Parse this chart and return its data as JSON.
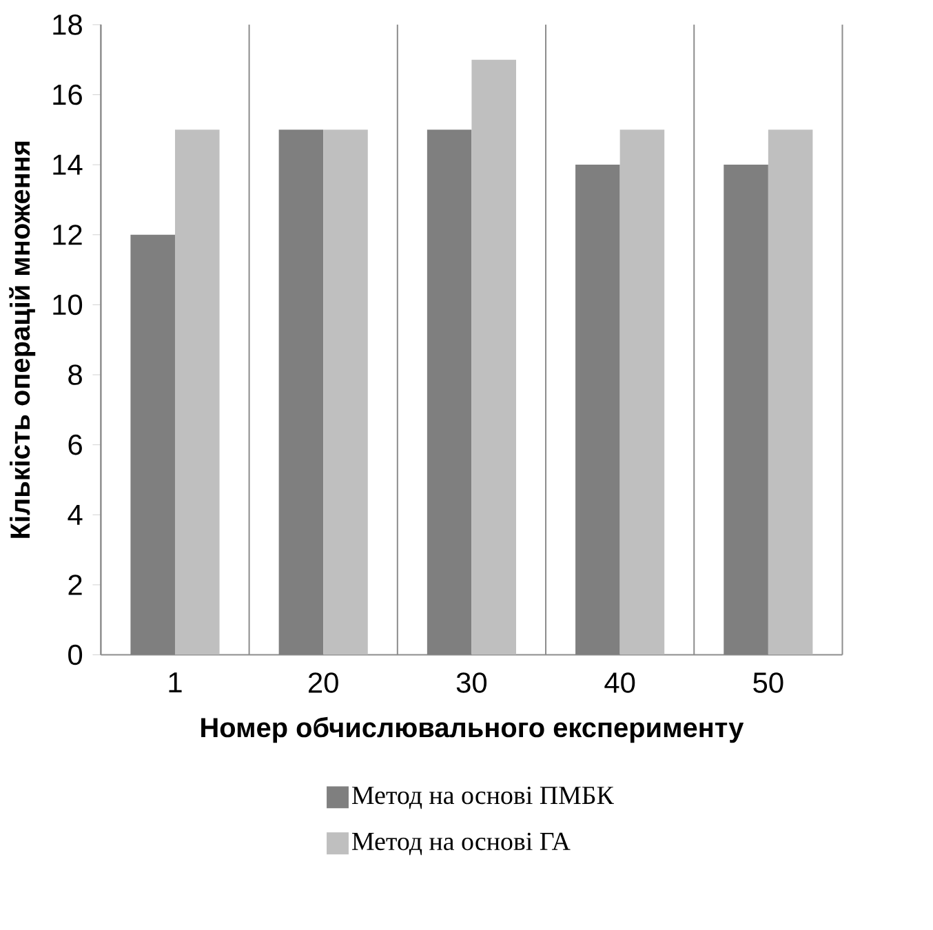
{
  "chart_data": {
    "type": "bar",
    "xlabel": "Номер обчислювального експерименту",
    "ylabel": "Кількість операцій множення",
    "categories": [
      "1",
      "20",
      "30",
      "40",
      "50"
    ],
    "series": [
      {
        "name": "Метод на основі ПМБК",
        "color": "#7f7f7f",
        "values": [
          12,
          15,
          15,
          14,
          14
        ]
      },
      {
        "name": "Метод на основі ГА",
        "color": "#bfbfbf",
        "values": [
          15,
          15,
          17,
          15,
          15
        ]
      }
    ],
    "ylim": [
      0,
      18
    ],
    "yticks": [
      0,
      2,
      4,
      6,
      8,
      10,
      12,
      14,
      16,
      18
    ],
    "grid": "x",
    "legend": "bottom"
  }
}
